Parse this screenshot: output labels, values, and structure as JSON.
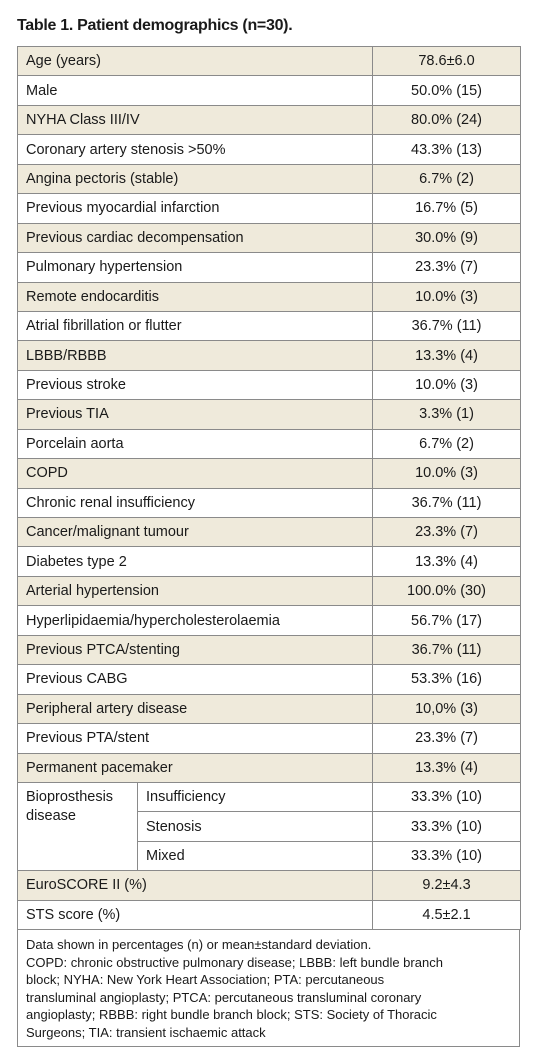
{
  "title": "Table 1. Patient demographics (n=30).",
  "table": {
    "rows": [
      [
        "Age (years)",
        "78.6±6.0"
      ],
      [
        "Male",
        "50.0% (15)"
      ],
      [
        "NYHA Class III/IV",
        "80.0% (24)"
      ],
      [
        "Coronary artery stenosis >50%",
        "43.3% (13)"
      ],
      [
        "Angina pectoris (stable)",
        "6.7% (2)"
      ],
      [
        "Previous myocardial infarction",
        "16.7% (5)"
      ],
      [
        "Previous cardiac decompensation",
        "30.0% (9)"
      ],
      [
        "Pulmonary hypertension",
        "23.3% (7)"
      ],
      [
        "Remote endocarditis",
        "10.0% (3)"
      ],
      [
        "Atrial fibrillation or flutter",
        "36.7% (11)"
      ],
      [
        "LBBB/RBBB",
        "13.3% (4)"
      ],
      [
        "Previous stroke",
        "10.0% (3)"
      ],
      [
        "Previous TIA",
        "3.3% (1)"
      ],
      [
        "Porcelain aorta",
        "6.7% (2)"
      ],
      [
        "COPD",
        "10.0% (3)"
      ],
      [
        "Chronic renal insufficiency",
        "36.7% (11)"
      ],
      [
        "Cancer/malignant tumour",
        "23.3% (7)"
      ],
      [
        "Diabetes type 2",
        "13.3% (4)"
      ],
      [
        "Arterial hypertension",
        "100.0% (30)"
      ],
      [
        "Hyperlipidaemia/hypercholesterolaemia",
        "56.7% (17)"
      ],
      [
        "Previous PTCA/stenting",
        "36.7% (11)"
      ],
      [
        "Previous CABG",
        "53.3% (16)"
      ],
      [
        "Peripheral artery disease",
        "10,0% (3)"
      ],
      [
        "Previous PTA/stent",
        "23.3% (7)"
      ],
      [
        "Permanent pacemaker",
        "13.3% (4)"
      ]
    ],
    "group": {
      "label": "Bioprosthesis disease",
      "rows": [
        [
          "Insufficiency",
          "33.3% (10)"
        ],
        [
          "Stenosis",
          "33.3% (10)"
        ],
        [
          "Mixed",
          "33.3% (10)"
        ]
      ]
    },
    "rows_after": [
      [
        "EuroSCORE II (%)",
        "9.2±4.3"
      ],
      [
        "STS score (%)",
        "4.5±2.1"
      ]
    ]
  },
  "footnote": [
    "Data shown in percentages (n) or mean±standard deviation.",
    "COPD: chronic obstructive pulmonary disease; LBBB: left bundle branch",
    "block; NYHA: New York Heart Association; PTA: percutaneous",
    "transluminal angioplasty; PTCA: percutaneous transluminal coronary",
    "angioplasty; RBBB: right bundle branch block; STS: Society of Thoracic",
    "Surgeons; TIA: transient ischaemic attack"
  ]
}
